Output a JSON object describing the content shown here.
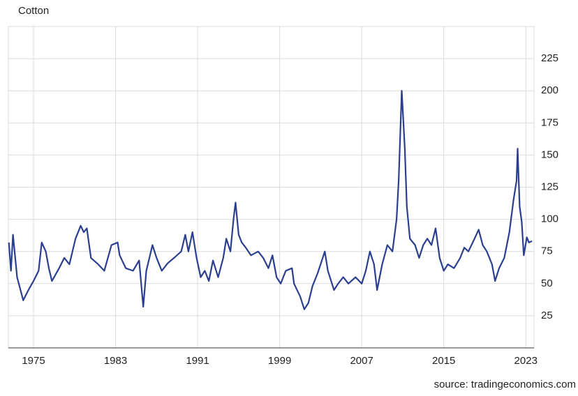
{
  "chart_data": {
    "type": "line",
    "title": "Cotton",
    "source": "source: tradingeconomics.com",
    "color": "#2a3f8f",
    "grid": true,
    "x": [
      1972.6,
      1972.8,
      1973.0,
      1973.4,
      1974.0,
      1974.5,
      1975.0,
      1975.5,
      1975.8,
      1976.2,
      1976.5,
      1976.8,
      1977.5,
      1978.0,
      1978.5,
      1979.1,
      1979.6,
      1979.9,
      1980.2,
      1980.6,
      1981.3,
      1981.9,
      1982.6,
      1983.2,
      1983.4,
      1984.0,
      1984.7,
      1985.3,
      1985.7,
      1986.0,
      1986.6,
      1987.0,
      1987.5,
      1988.1,
      1988.7,
      1989.4,
      1989.8,
      1990.1,
      1990.5,
      1990.9,
      1991.3,
      1991.7,
      1992.1,
      1992.5,
      1993.0,
      1993.5,
      1993.8,
      1994.2,
      1994.5,
      1994.7,
      1995.0,
      1995.3,
      1995.7,
      1996.2,
      1996.9,
      1997.4,
      1997.9,
      1998.3,
      1998.7,
      1999.1,
      1999.6,
      2000.2,
      2000.4,
      2001.0,
      2001.4,
      2001.8,
      2002.2,
      2002.7,
      2003.2,
      2003.4,
      2003.7,
      2004.3,
      2004.7,
      2005.2,
      2005.7,
      2006.4,
      2007.0,
      2007.4,
      2007.8,
      2008.2,
      2008.5,
      2009.0,
      2009.5,
      2010.0,
      2010.4,
      2010.6,
      2010.9,
      2011.2,
      2011.4,
      2011.7,
      2012.2,
      2012.6,
      2013.0,
      2013.4,
      2013.8,
      2014.2,
      2014.6,
      2015.0,
      2015.4,
      2016.0,
      2016.6,
      2017.0,
      2017.4,
      2018.0,
      2018.4,
      2018.8,
      2019.2,
      2019.7,
      2020.0,
      2020.4,
      2020.9,
      2021.4,
      2021.8,
      2022.1,
      2022.2,
      2022.4,
      2022.6,
      2022.8,
      2023.1,
      2023.3,
      2023.6
    ],
    "values": [
      82,
      60,
      88,
      55,
      37,
      45,
      52,
      60,
      82,
      75,
      62,
      52,
      62,
      70,
      65,
      85,
      95,
      90,
      93,
      70,
      65,
      60,
      80,
      82,
      72,
      62,
      60,
      68,
      32,
      60,
      80,
      70,
      60,
      66,
      70,
      75,
      88,
      75,
      90,
      70,
      55,
      60,
      52,
      68,
      55,
      70,
      85,
      75,
      100,
      113,
      88,
      82,
      78,
      72,
      75,
      70,
      62,
      72,
      55,
      50,
      60,
      62,
      50,
      40,
      30,
      35,
      48,
      58,
      70,
      75,
      60,
      45,
      50,
      55,
      50,
      55,
      50,
      60,
      75,
      65,
      45,
      65,
      80,
      75,
      100,
      130,
      200,
      155,
      110,
      85,
      80,
      70,
      80,
      85,
      80,
      93,
      70,
      60,
      65,
      62,
      70,
      78,
      75,
      85,
      92,
      80,
      75,
      65,
      52,
      62,
      70,
      90,
      115,
      130,
      155,
      110,
      98,
      72,
      86,
      82,
      83
    ],
    "xlim": [
      1972.55,
      2023.8
    ],
    "xticks": [
      1975,
      1983,
      1991,
      1999,
      2007,
      2015,
      2023
    ],
    "ylim": [
      0,
      250
    ],
    "yticks": [
      25,
      50,
      75,
      100,
      125,
      150,
      175,
      200,
      225
    ]
  }
}
